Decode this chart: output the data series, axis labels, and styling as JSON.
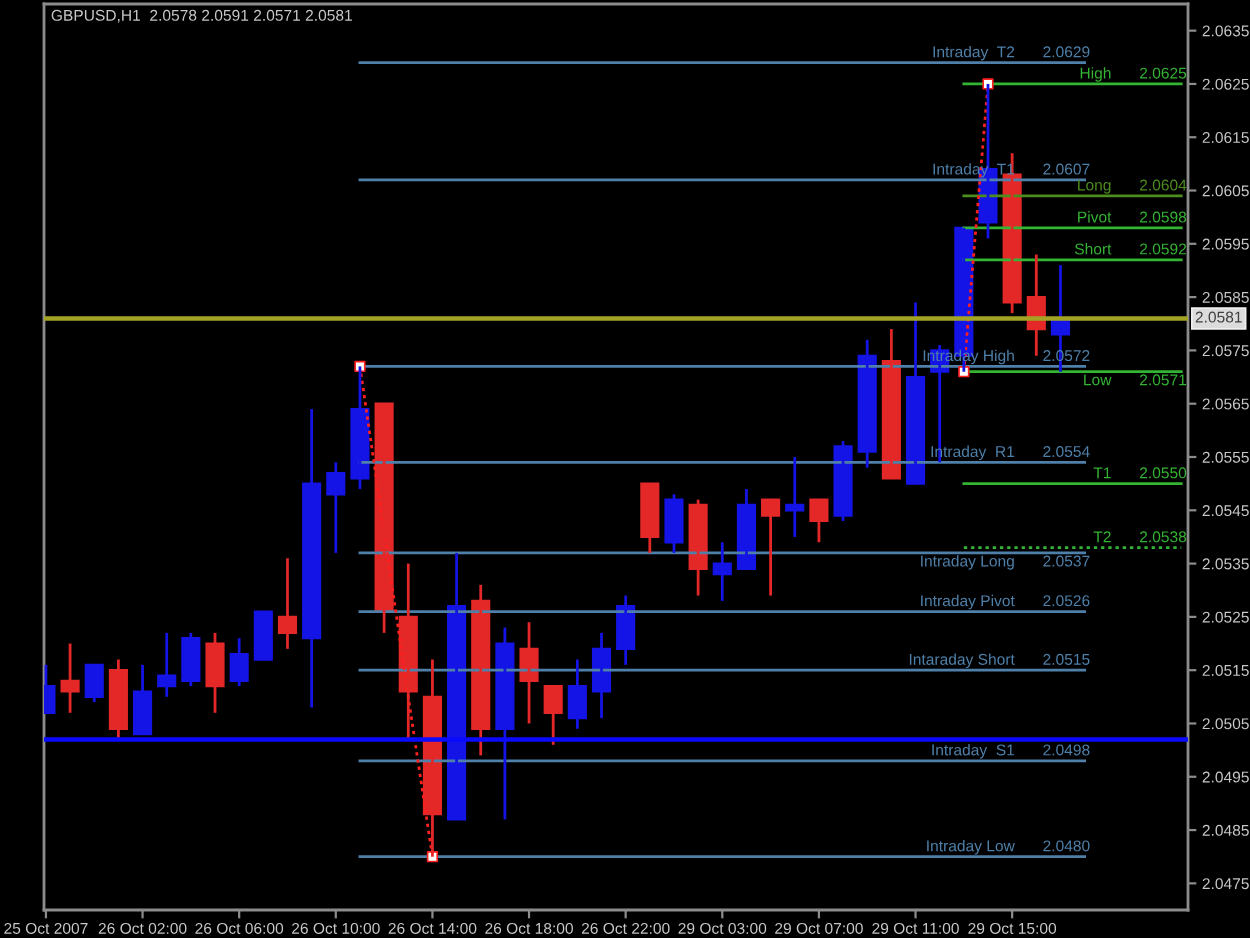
{
  "chart_data": {
    "type": "candlestick",
    "title": "GBPUSD,H1  2.0578 2.0591 2.0571 2.0581",
    "categories": [
      "25 Oct 2007",
      null,
      null,
      null,
      "26 Oct 02:00",
      null,
      null,
      null,
      "26 Oct 06:00",
      null,
      null,
      null,
      "26 Oct 10:00",
      null,
      null,
      null,
      "26 Oct 14:00",
      null,
      null,
      null,
      "26 Oct 18:00",
      null,
      null,
      null,
      "26 Oct 22:00",
      null,
      null,
      null,
      "29 Oct 03:00",
      null,
      null,
      null,
      "29 Oct 07:00",
      null,
      null,
      null,
      "29 Oct 11:00",
      null,
      null,
      null,
      "29 Oct 15:00",
      null,
      null,
      null,
      null,
      null,
      null,
      null
    ],
    "ohlc": [
      [
        2.0507,
        2.0516,
        2.0507,
        2.0512
      ],
      [
        2.0513,
        2.052,
        2.0507,
        2.0511
      ],
      [
        2.051,
        2.0516,
        2.0509,
        2.0516
      ],
      [
        2.0515,
        2.0517,
        2.0502,
        2.0504
      ],
      [
        2.0503,
        2.0516,
        2.0503,
        2.0511
      ],
      [
        2.0512,
        2.0522,
        2.051,
        2.0514
      ],
      [
        2.0513,
        2.0522,
        2.0512,
        2.0521
      ],
      [
        2.052,
        2.0522,
        2.0507,
        2.0512
      ],
      [
        2.0513,
        2.0521,
        2.0512,
        2.0518
      ],
      [
        2.0517,
        2.0526,
        2.0517,
        2.0526
      ],
      [
        2.0525,
        2.0536,
        2.0519,
        2.0522
      ],
      [
        2.0521,
        2.0564,
        2.0508,
        2.055
      ],
      [
        2.0548,
        2.0554,
        2.0537,
        2.0552
      ],
      [
        2.0551,
        2.0572,
        2.0549,
        2.0564
      ],
      [
        2.0565,
        2.0565,
        2.0522,
        2.0526
      ],
      [
        2.0525,
        2.0535,
        2.0502,
        2.0511
      ],
      [
        2.051,
        2.0517,
        2.048,
        2.0488
      ],
      [
        2.0487,
        2.0537,
        2.0487,
        2.0527
      ],
      [
        2.0528,
        2.0531,
        2.0499,
        2.0504
      ],
      [
        2.0504,
        2.0523,
        2.0487,
        2.052
      ],
      [
        2.0519,
        2.0524,
        2.0505,
        2.0513
      ],
      [
        2.0512,
        2.0512,
        2.0501,
        2.0507
      ],
      [
        2.0506,
        2.0517,
        2.0504,
        2.0512
      ],
      [
        2.0511,
        2.0522,
        2.0506,
        2.0519
      ],
      [
        2.0519,
        2.0529,
        2.0516,
        2.0527
      ],
      [
        2.055,
        2.055,
        2.0537,
        2.054
      ],
      [
        2.0539,
        2.0548,
        2.0537,
        2.0547
      ],
      [
        2.0546,
        2.0547,
        2.0529,
        2.0534
      ],
      [
        2.0533,
        2.0539,
        2.0528,
        2.0535
      ],
      [
        2.0534,
        2.0549,
        2.0534,
        2.0546
      ],
      [
        2.0547,
        2.0547,
        2.0529,
        2.0544
      ],
      [
        2.0545,
        2.0555,
        2.054,
        2.0546
      ],
      [
        2.0547,
        2.0547,
        2.0539,
        2.0543
      ],
      [
        2.0544,
        2.0558,
        2.0543,
        2.0557
      ],
      [
        2.0556,
        2.0577,
        2.0553,
        2.0574
      ],
      [
        2.0573,
        2.0579,
        2.0551,
        2.0551
      ],
      [
        2.055,
        2.0584,
        2.055,
        2.057
      ],
      [
        2.0571,
        2.0576,
        2.0554,
        2.0575
      ],
      [
        2.0574,
        2.0598,
        2.0571,
        2.0598
      ],
      [
        2.0599,
        2.0625,
        2.0596,
        2.0609
      ],
      [
        2.0608,
        2.0612,
        2.0582,
        2.0584
      ],
      [
        2.0585,
        2.0593,
        2.0574,
        2.0579
      ],
      [
        2.0578,
        2.0591,
        2.0571,
        2.0581
      ],
      null,
      null,
      null,
      null,
      null
    ],
    "colors": [
      "#1414e6",
      "#e42828",
      "#1414e6",
      "#e42828",
      "#1414e6",
      "#1414e6",
      "#1414e6",
      "#e42828",
      "#1414e6",
      "#1414e6",
      "#e42828",
      "#1414e6",
      "#1414e6",
      "#1414e6",
      "#e42828",
      "#e42828",
      "#e42828",
      "#1414e6",
      "#e42828",
      "#1414e6",
      "#e42828",
      "#e42828",
      "#1414e6",
      "#1414e6",
      "#1414e6",
      "#e42828",
      "#1414e6",
      "#e42828",
      "#1414e6",
      "#1414e6",
      "#e42828",
      "#1414e6",
      "#e42828",
      "#1414e6",
      "#1414e6",
      "#e42828",
      "#1414e6",
      "#1414e6",
      "#1414e6",
      "#1414e6",
      "#e42828",
      "#e42828",
      "#1414e6",
      null,
      null,
      null,
      null,
      null
    ],
    "ylim": [
      2.047,
      2.064
    ],
    "yticks": [
      2.0475,
      2.0485,
      2.0495,
      2.0505,
      2.0515,
      2.0525,
      2.0535,
      2.0545,
      2.0555,
      2.0565,
      2.0575,
      2.0585,
      2.0595,
      2.0605,
      2.0615,
      2.0625,
      2.0635
    ],
    "grid": false,
    "legend": false,
    "ref_lines": [
      {
        "axis": "y",
        "value": 2.0581,
        "label": "2.0581",
        "color": "#a4a424"
      },
      {
        "axis": "y",
        "value": 2.0502,
        "color": "#0a0aff"
      }
    ],
    "series": [
      {
        "type": "line",
        "name": "Intraday  T2",
        "color": "#4f80aa",
        "values": [
          null,
          null,
          null,
          null,
          null,
          null,
          null,
          null,
          null,
          null,
          null,
          null,
          null,
          2.0629,
          2.0629,
          2.0629,
          2.0629,
          2.0629,
          2.0629,
          2.0629,
          2.0629,
          2.0629,
          2.0629,
          2.0629,
          2.0629,
          2.0629,
          2.0629,
          2.0629,
          2.0629,
          2.0629,
          2.0629,
          2.0629,
          2.0629,
          2.0629,
          2.0629,
          2.0629,
          2.0629,
          2.0629,
          2.0629,
          2.0629,
          2.0629,
          2.0629,
          2.0629,
          2.0629,
          null,
          null,
          null,
          null
        ],
        "value_labels": [
          null,
          null,
          null,
          null,
          null,
          null,
          null,
          null,
          null,
          null,
          null,
          null,
          null,
          null,
          null,
          null,
          null,
          null,
          null,
          null,
          null,
          null,
          null,
          null,
          null,
          null,
          null,
          null,
          null,
          null,
          null,
          null,
          null,
          null,
          null,
          null,
          null,
          null,
          null,
          null,
          null,
          null,
          null,
          "2.0629",
          null,
          null,
          null,
          null
        ]
      },
      {
        "type": "line",
        "name": "Intraday  T1",
        "color": "#4f80aa",
        "values": [
          null,
          null,
          null,
          null,
          null,
          null,
          null,
          null,
          null,
          null,
          null,
          null,
          null,
          2.0607,
          2.0607,
          2.0607,
          2.0607,
          2.0607,
          2.0607,
          2.0607,
          2.0607,
          2.0607,
          2.0607,
          2.0607,
          2.0607,
          2.0607,
          2.0607,
          2.0607,
          2.0607,
          2.0607,
          2.0607,
          2.0607,
          2.0607,
          2.0607,
          2.0607,
          2.0607,
          2.0607,
          2.0607,
          2.0607,
          2.0607,
          2.0607,
          2.0607,
          2.0607,
          2.0607,
          null,
          null,
          null,
          null
        ],
        "value_labels": [
          null,
          null,
          null,
          null,
          null,
          null,
          null,
          null,
          null,
          null,
          null,
          null,
          null,
          null,
          null,
          null,
          null,
          null,
          null,
          null,
          null,
          null,
          null,
          null,
          null,
          null,
          null,
          null,
          null,
          null,
          null,
          null,
          null,
          null,
          null,
          null,
          null,
          null,
          null,
          null,
          null,
          null,
          null,
          "2.0607",
          null,
          null,
          null,
          null
        ]
      },
      {
        "type": "line",
        "name": "Intraday High",
        "color": "#4f80aa",
        "values": [
          null,
          null,
          null,
          null,
          null,
          null,
          null,
          null,
          null,
          null,
          null,
          null,
          null,
          2.0572,
          2.0572,
          2.0572,
          2.0572,
          2.0572,
          2.0572,
          2.0572,
          2.0572,
          2.0572,
          2.0572,
          2.0572,
          2.0572,
          2.0572,
          2.0572,
          2.0572,
          2.0572,
          2.0572,
          2.0572,
          2.0572,
          2.0572,
          2.0572,
          2.0572,
          2.0572,
          2.0572,
          2.0572,
          2.0572,
          2.0572,
          2.0572,
          2.0572,
          2.0572,
          2.0572,
          null,
          null,
          null,
          null
        ],
        "value_labels": [
          null,
          null,
          null,
          null,
          null,
          null,
          null,
          null,
          null,
          null,
          null,
          null,
          null,
          null,
          null,
          null,
          null,
          null,
          null,
          null,
          null,
          null,
          null,
          null,
          null,
          null,
          null,
          null,
          null,
          null,
          null,
          null,
          null,
          null,
          null,
          null,
          null,
          null,
          null,
          null,
          null,
          null,
          null,
          "2.0572",
          null,
          null,
          null,
          null
        ]
      },
      {
        "type": "line",
        "name": "Intraday  R1",
        "color": "#4f80aa",
        "values": [
          null,
          null,
          null,
          null,
          null,
          null,
          null,
          null,
          null,
          null,
          null,
          null,
          null,
          2.0554,
          2.0554,
          2.0554,
          2.0554,
          2.0554,
          2.0554,
          2.0554,
          2.0554,
          2.0554,
          2.0554,
          2.0554,
          2.0554,
          2.0554,
          2.0554,
          2.0554,
          2.0554,
          2.0554,
          2.0554,
          2.0554,
          2.0554,
          2.0554,
          2.0554,
          2.0554,
          2.0554,
          2.0554,
          2.0554,
          2.0554,
          2.0554,
          2.0554,
          2.0554,
          2.0554,
          null,
          null,
          null,
          null
        ],
        "value_labels": [
          null,
          null,
          null,
          null,
          null,
          null,
          null,
          null,
          null,
          null,
          null,
          null,
          null,
          null,
          null,
          null,
          null,
          null,
          null,
          null,
          null,
          null,
          null,
          null,
          null,
          null,
          null,
          null,
          null,
          null,
          null,
          null,
          null,
          null,
          null,
          null,
          null,
          null,
          null,
          null,
          null,
          null,
          null,
          "2.0554",
          null,
          null,
          null,
          null
        ]
      },
      {
        "type": "line",
        "name": "Intraday Long",
        "color": "#4f80aa",
        "values": [
          null,
          null,
          null,
          null,
          null,
          null,
          null,
          null,
          null,
          null,
          null,
          null,
          null,
          2.0537,
          2.0537,
          2.0537,
          2.0537,
          2.0537,
          2.0537,
          2.0537,
          2.0537,
          2.0537,
          2.0537,
          2.0537,
          2.0537,
          2.0537,
          2.0537,
          2.0537,
          2.0537,
          2.0537,
          2.0537,
          2.0537,
          2.0537,
          2.0537,
          2.0537,
          2.0537,
          2.0537,
          2.0537,
          2.0537,
          2.0537,
          2.0537,
          2.0537,
          2.0537,
          2.0537,
          null,
          null,
          null,
          null
        ],
        "value_labels": [
          null,
          null,
          null,
          null,
          null,
          null,
          null,
          null,
          null,
          null,
          null,
          null,
          null,
          null,
          null,
          null,
          null,
          null,
          null,
          null,
          null,
          null,
          null,
          null,
          null,
          null,
          null,
          null,
          null,
          null,
          null,
          null,
          null,
          null,
          null,
          null,
          null,
          null,
          null,
          null,
          null,
          null,
          null,
          "2.0537",
          null,
          null,
          null,
          null
        ]
      },
      {
        "type": "line",
        "name": "Intraday Pivot",
        "color": "#4f80aa",
        "values": [
          null,
          null,
          null,
          null,
          null,
          null,
          null,
          null,
          null,
          null,
          null,
          null,
          null,
          2.0526,
          2.0526,
          2.0526,
          2.0526,
          2.0526,
          2.0526,
          2.0526,
          2.0526,
          2.0526,
          2.0526,
          2.0526,
          2.0526,
          2.0526,
          2.0526,
          2.0526,
          2.0526,
          2.0526,
          2.0526,
          2.0526,
          2.0526,
          2.0526,
          2.0526,
          2.0526,
          2.0526,
          2.0526,
          2.0526,
          2.0526,
          2.0526,
          2.0526,
          2.0526,
          2.0526,
          null,
          null,
          null,
          null
        ],
        "value_labels": [
          null,
          null,
          null,
          null,
          null,
          null,
          null,
          null,
          null,
          null,
          null,
          null,
          null,
          null,
          null,
          null,
          null,
          null,
          null,
          null,
          null,
          null,
          null,
          null,
          null,
          null,
          null,
          null,
          null,
          null,
          null,
          null,
          null,
          null,
          null,
          null,
          null,
          null,
          null,
          null,
          null,
          null,
          null,
          "2.0526",
          null,
          null,
          null,
          null
        ]
      },
      {
        "type": "line",
        "name": "Intaraday Short",
        "color": "#4f80aa",
        "values": [
          null,
          null,
          null,
          null,
          null,
          null,
          null,
          null,
          null,
          null,
          null,
          null,
          null,
          2.0515,
          2.0515,
          2.0515,
          2.0515,
          2.0515,
          2.0515,
          2.0515,
          2.0515,
          2.0515,
          2.0515,
          2.0515,
          2.0515,
          2.0515,
          2.0515,
          2.0515,
          2.0515,
          2.0515,
          2.0515,
          2.0515,
          2.0515,
          2.0515,
          2.0515,
          2.0515,
          2.0515,
          2.0515,
          2.0515,
          2.0515,
          2.0515,
          2.0515,
          2.0515,
          2.0515,
          null,
          null,
          null,
          null
        ],
        "value_labels": [
          null,
          null,
          null,
          null,
          null,
          null,
          null,
          null,
          null,
          null,
          null,
          null,
          null,
          null,
          null,
          null,
          null,
          null,
          null,
          null,
          null,
          null,
          null,
          null,
          null,
          null,
          null,
          null,
          null,
          null,
          null,
          null,
          null,
          null,
          null,
          null,
          null,
          null,
          null,
          null,
          null,
          null,
          null,
          "2.0515",
          null,
          null,
          null,
          null
        ]
      },
      {
        "type": "line",
        "name": "Intraday  S1",
        "color": "#4f80aa",
        "values": [
          null,
          null,
          null,
          null,
          null,
          null,
          null,
          null,
          null,
          null,
          null,
          null,
          null,
          2.0498,
          2.0498,
          2.0498,
          2.0498,
          2.0498,
          2.0498,
          2.0498,
          2.0498,
          2.0498,
          2.0498,
          2.0498,
          2.0498,
          2.0498,
          2.0498,
          2.0498,
          2.0498,
          2.0498,
          2.0498,
          2.0498,
          2.0498,
          2.0498,
          2.0498,
          2.0498,
          2.0498,
          2.0498,
          2.0498,
          2.0498,
          2.0498,
          2.0498,
          2.0498,
          2.0498,
          null,
          null,
          null,
          null
        ],
        "value_labels": [
          null,
          null,
          null,
          null,
          null,
          null,
          null,
          null,
          null,
          null,
          null,
          null,
          null,
          null,
          null,
          null,
          null,
          null,
          null,
          null,
          null,
          null,
          null,
          null,
          null,
          null,
          null,
          null,
          null,
          null,
          null,
          null,
          null,
          null,
          null,
          null,
          null,
          null,
          null,
          null,
          null,
          null,
          null,
          "2.0498",
          null,
          null,
          null,
          null
        ]
      },
      {
        "type": "line",
        "name": "Intraday Low",
        "color": "#4f80aa",
        "values": [
          null,
          null,
          null,
          null,
          null,
          null,
          null,
          null,
          null,
          null,
          null,
          null,
          null,
          2.048,
          2.048,
          2.048,
          2.048,
          2.048,
          2.048,
          2.048,
          2.048,
          2.048,
          2.048,
          2.048,
          2.048,
          2.048,
          2.048,
          2.048,
          2.048,
          2.048,
          2.048,
          2.048,
          2.048,
          2.048,
          2.048,
          2.048,
          2.048,
          2.048,
          2.048,
          2.048,
          2.048,
          2.048,
          2.048,
          2.048,
          null,
          null,
          null,
          null
        ],
        "value_labels": [
          null,
          null,
          null,
          null,
          null,
          null,
          null,
          null,
          null,
          null,
          null,
          null,
          null,
          null,
          null,
          null,
          null,
          null,
          null,
          null,
          null,
          null,
          null,
          null,
          null,
          null,
          null,
          null,
          null,
          null,
          null,
          null,
          null,
          null,
          null,
          null,
          null,
          null,
          null,
          null,
          null,
          null,
          null,
          "2.0480",
          null,
          null,
          null,
          null
        ]
      },
      {
        "type": "line",
        "name": "High",
        "color": "#34b434",
        "values": [
          null,
          null,
          null,
          null,
          null,
          null,
          null,
          null,
          null,
          null,
          null,
          null,
          null,
          null,
          null,
          null,
          null,
          null,
          null,
          null,
          null,
          null,
          null,
          null,
          null,
          null,
          null,
          null,
          null,
          null,
          null,
          null,
          null,
          null,
          null,
          null,
          null,
          null,
          2.0625,
          2.0625,
          2.0625,
          2.0625,
          2.0625,
          2.0625,
          2.0625,
          2.0625,
          2.0625,
          2.0625
        ],
        "value_labels": [
          null,
          null,
          null,
          null,
          null,
          null,
          null,
          null,
          null,
          null,
          null,
          null,
          null,
          null,
          null,
          null,
          null,
          null,
          null,
          null,
          null,
          null,
          null,
          null,
          null,
          null,
          null,
          null,
          null,
          null,
          null,
          null,
          null,
          null,
          null,
          null,
          null,
          null,
          null,
          null,
          null,
          null,
          null,
          null,
          null,
          null,
          null,
          "2.0625"
        ]
      },
      {
        "type": "line",
        "name": "Long",
        "color": "#4d8c1e",
        "values": [
          null,
          null,
          null,
          null,
          null,
          null,
          null,
          null,
          null,
          null,
          null,
          null,
          null,
          null,
          null,
          null,
          null,
          null,
          null,
          null,
          null,
          null,
          null,
          null,
          null,
          null,
          null,
          null,
          null,
          null,
          null,
          null,
          null,
          null,
          null,
          null,
          null,
          null,
          2.0604,
          2.0604,
          2.0604,
          2.0604,
          2.0604,
          2.0604,
          2.0604,
          2.0604,
          2.0604,
          2.0604
        ],
        "value_labels": [
          null,
          null,
          null,
          null,
          null,
          null,
          null,
          null,
          null,
          null,
          null,
          null,
          null,
          null,
          null,
          null,
          null,
          null,
          null,
          null,
          null,
          null,
          null,
          null,
          null,
          null,
          null,
          null,
          null,
          null,
          null,
          null,
          null,
          null,
          null,
          null,
          null,
          null,
          null,
          null,
          null,
          null,
          null,
          null,
          null,
          null,
          null,
          "2.0604"
        ]
      },
      {
        "type": "line",
        "name": "Pivot",
        "color": "#34b434",
        "values": [
          null,
          null,
          null,
          null,
          null,
          null,
          null,
          null,
          null,
          null,
          null,
          null,
          null,
          null,
          null,
          null,
          null,
          null,
          null,
          null,
          null,
          null,
          null,
          null,
          null,
          null,
          null,
          null,
          null,
          null,
          null,
          null,
          null,
          null,
          null,
          null,
          null,
          null,
          2.0598,
          2.0598,
          2.0598,
          2.0598,
          2.0598,
          2.0598,
          2.0598,
          2.0598,
          2.0598,
          2.0598
        ],
        "value_labels": [
          null,
          null,
          null,
          null,
          null,
          null,
          null,
          null,
          null,
          null,
          null,
          null,
          null,
          null,
          null,
          null,
          null,
          null,
          null,
          null,
          null,
          null,
          null,
          null,
          null,
          null,
          null,
          null,
          null,
          null,
          null,
          null,
          null,
          null,
          null,
          null,
          null,
          null,
          null,
          null,
          null,
          null,
          null,
          null,
          null,
          null,
          null,
          "2.0598"
        ]
      },
      {
        "type": "line",
        "name": "Short",
        "color": "#34b434",
        "values": [
          null,
          null,
          null,
          null,
          null,
          null,
          null,
          null,
          null,
          null,
          null,
          null,
          null,
          null,
          null,
          null,
          null,
          null,
          null,
          null,
          null,
          null,
          null,
          null,
          null,
          null,
          null,
          null,
          null,
          null,
          null,
          null,
          null,
          null,
          null,
          null,
          null,
          null,
          2.0592,
          2.0592,
          2.0592,
          2.0592,
          2.0592,
          2.0592,
          2.0592,
          2.0592,
          2.0592,
          2.0592
        ],
        "value_labels": [
          null,
          null,
          null,
          null,
          null,
          null,
          null,
          null,
          null,
          null,
          null,
          null,
          null,
          null,
          null,
          null,
          null,
          null,
          null,
          null,
          null,
          null,
          null,
          null,
          null,
          null,
          null,
          null,
          null,
          null,
          null,
          null,
          null,
          null,
          null,
          null,
          null,
          null,
          null,
          null,
          null,
          null,
          null,
          null,
          null,
          null,
          null,
          "2.0592"
        ]
      },
      {
        "type": "line",
        "name": "Low",
        "color": "#34b434",
        "values": [
          null,
          null,
          null,
          null,
          null,
          null,
          null,
          null,
          null,
          null,
          null,
          null,
          null,
          null,
          null,
          null,
          null,
          null,
          null,
          null,
          null,
          null,
          null,
          null,
          null,
          null,
          null,
          null,
          null,
          null,
          null,
          null,
          null,
          null,
          null,
          null,
          null,
          null,
          2.0571,
          2.0571,
          2.0571,
          2.0571,
          2.0571,
          2.0571,
          2.0571,
          2.0571,
          2.0571,
          2.0571
        ],
        "value_labels": [
          null,
          null,
          null,
          null,
          null,
          null,
          null,
          null,
          null,
          null,
          null,
          null,
          null,
          null,
          null,
          null,
          null,
          null,
          null,
          null,
          null,
          null,
          null,
          null,
          null,
          null,
          null,
          null,
          null,
          null,
          null,
          null,
          null,
          null,
          null,
          null,
          null,
          null,
          null,
          null,
          null,
          null,
          null,
          null,
          null,
          null,
          null,
          "2.0571"
        ]
      },
      {
        "type": "line",
        "name": "T1",
        "color": "#34b434",
        "values": [
          null,
          null,
          null,
          null,
          null,
          null,
          null,
          null,
          null,
          null,
          null,
          null,
          null,
          null,
          null,
          null,
          null,
          null,
          null,
          null,
          null,
          null,
          null,
          null,
          null,
          null,
          null,
          null,
          null,
          null,
          null,
          null,
          null,
          null,
          null,
          null,
          null,
          null,
          2.055,
          2.055,
          2.055,
          2.055,
          2.055,
          2.055,
          2.055,
          2.055,
          2.055,
          2.055
        ],
        "value_labels": [
          null,
          null,
          null,
          null,
          null,
          null,
          null,
          null,
          null,
          null,
          null,
          null,
          null,
          null,
          null,
          null,
          null,
          null,
          null,
          null,
          null,
          null,
          null,
          null,
          null,
          null,
          null,
          null,
          null,
          null,
          null,
          null,
          null,
          null,
          null,
          null,
          null,
          null,
          null,
          null,
          null,
          null,
          null,
          null,
          null,
          null,
          null,
          "2.0550"
        ]
      },
      {
        "type": "line",
        "name": "T2",
        "color": "#34b434",
        "line_style": "dotted",
        "values": [
          null,
          null,
          null,
          null,
          null,
          null,
          null,
          null,
          null,
          null,
          null,
          null,
          null,
          null,
          null,
          null,
          null,
          null,
          null,
          null,
          null,
          null,
          null,
          null,
          null,
          null,
          null,
          null,
          null,
          null,
          null,
          null,
          null,
          null,
          null,
          null,
          null,
          null,
          2.0538,
          2.0538,
          2.0538,
          2.0538,
          2.0538,
          2.0538,
          2.0538,
          2.0538,
          2.0538,
          2.0538
        ],
        "value_labels": [
          null,
          null,
          null,
          null,
          null,
          null,
          null,
          null,
          null,
          null,
          null,
          null,
          null,
          null,
          null,
          null,
          null,
          null,
          null,
          null,
          null,
          null,
          null,
          null,
          null,
          null,
          null,
          null,
          null,
          null,
          null,
          null,
          null,
          null,
          null,
          null,
          null,
          null,
          null,
          null,
          null,
          null,
          null,
          null,
          null,
          null,
          null,
          "2.0538"
        ]
      },
      {
        "type": "line",
        "color": "#ff2020",
        "line_style": "dotted",
        "values": [
          null,
          null,
          null,
          null,
          null,
          null,
          null,
          null,
          null,
          null,
          null,
          null,
          null,
          2.0572,
          2.0541,
          2.051,
          2.048,
          null,
          null,
          null,
          null,
          null,
          null,
          null,
          null,
          null,
          null,
          null,
          null,
          null,
          null,
          null,
          null,
          null,
          null,
          null,
          null,
          null,
          2.0571,
          2.0625,
          null,
          null,
          null,
          null,
          null,
          null,
          null,
          null
        ]
      },
      {
        "type": "scatter",
        "color": "#ffffff",
        "marker": "square",
        "values": [
          null,
          null,
          null,
          null,
          null,
          null,
          null,
          null,
          null,
          null,
          null,
          null,
          null,
          2.0572,
          null,
          null,
          2.048,
          null,
          null,
          null,
          null,
          null,
          null,
          null,
          null,
          null,
          null,
          null,
          null,
          null,
          null,
          null,
          null,
          null,
          null,
          null,
          null,
          null,
          2.0571,
          2.0625,
          null,
          null,
          null,
          null,
          null,
          null,
          null,
          null
        ]
      }
    ]
  }
}
